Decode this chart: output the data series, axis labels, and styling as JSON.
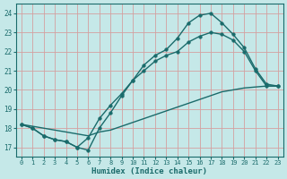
{
  "xlabel": "Humidex (Indice chaleur)",
  "bg_color": "#c5e8e8",
  "grid_color": "#d4a0a0",
  "line_color": "#1a6b6b",
  "xlim": [
    -0.5,
    23.5
  ],
  "ylim": [
    16.5,
    24.5
  ],
  "xticks": [
    0,
    1,
    2,
    3,
    4,
    5,
    6,
    7,
    8,
    9,
    10,
    11,
    12,
    13,
    14,
    15,
    16,
    17,
    18,
    19,
    20,
    21,
    22,
    23
  ],
  "yticks": [
    17,
    18,
    19,
    20,
    21,
    22,
    23,
    24
  ],
  "curve1_x": [
    0,
    1,
    2,
    3,
    4,
    5,
    6,
    7,
    8,
    9,
    10,
    11,
    12,
    13,
    14,
    15,
    16,
    17,
    18,
    19,
    20,
    21,
    22,
    23
  ],
  "curve1_y": [
    18.2,
    18.0,
    17.6,
    17.4,
    17.3,
    17.0,
    16.85,
    18.0,
    18.8,
    19.7,
    20.5,
    21.3,
    21.8,
    22.1,
    22.7,
    23.5,
    23.9,
    24.0,
    23.5,
    22.9,
    22.2,
    21.1,
    20.3,
    20.2
  ],
  "curve2_x": [
    0,
    1,
    2,
    3,
    4,
    5,
    6,
    7,
    8,
    9,
    10,
    11,
    12,
    13,
    14,
    15,
    16,
    17,
    18,
    19,
    20,
    21,
    22,
    23
  ],
  "curve2_y": [
    18.2,
    18.0,
    17.6,
    17.4,
    17.3,
    17.0,
    17.5,
    18.5,
    19.2,
    19.8,
    20.5,
    21.0,
    21.5,
    21.8,
    22.0,
    22.5,
    22.8,
    23.0,
    22.9,
    22.6,
    22.0,
    21.0,
    20.2,
    20.2
  ],
  "curve3_x": [
    0,
    1,
    2,
    3,
    4,
    5,
    6,
    7,
    8,
    9,
    10,
    11,
    12,
    13,
    14,
    15,
    16,
    17,
    18,
    19,
    20,
    21,
    22,
    23
  ],
  "curve3_y": [
    18.2,
    18.1,
    18.0,
    17.9,
    17.8,
    17.7,
    17.6,
    17.8,
    17.9,
    18.1,
    18.3,
    18.5,
    18.7,
    18.9,
    19.1,
    19.3,
    19.5,
    19.7,
    19.9,
    20.0,
    20.1,
    20.15,
    20.2,
    20.2
  ]
}
